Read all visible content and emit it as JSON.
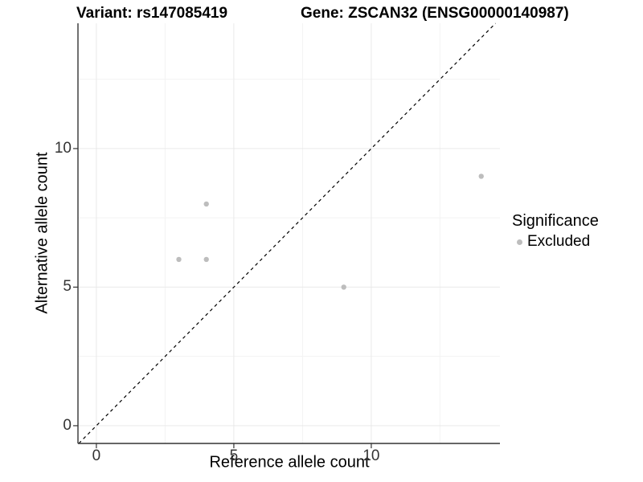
{
  "chart_data": {
    "type": "scatter",
    "titles": {
      "left": "Variant: rs147085419",
      "right": "Gene: ZSCAN32 (ENSG00000140987)"
    },
    "xlabel": "Reference allele count",
    "ylabel": "Alternative allele count",
    "xlim": [
      -0.67,
      14.68
    ],
    "ylim": [
      -0.64,
      14.52
    ],
    "x_ticks": [
      0,
      5,
      10
    ],
    "y_ticks": [
      0,
      5,
      10
    ],
    "x_minor_ticks": [
      2.5,
      7.5,
      12.5
    ],
    "y_minor_ticks": [
      2.5,
      7.5,
      12.5
    ],
    "grid": "major+minor",
    "identity_line": {
      "slope": 1,
      "intercept": 0,
      "style": "dashed",
      "color": "#000000"
    },
    "series": [
      {
        "name": "Excluded",
        "color": "#bdbdbd",
        "points": [
          {
            "x": 3,
            "y": 6
          },
          {
            "x": 4,
            "y": 6
          },
          {
            "x": 4,
            "y": 8
          },
          {
            "x": 9,
            "y": 5
          },
          {
            "x": 14,
            "y": 9
          }
        ]
      }
    ],
    "legend": {
      "title": "Significance",
      "position": "right",
      "entries": [
        {
          "label": "Excluded",
          "color": "#bdbdbd"
        }
      ]
    },
    "colors": {
      "point": "#bdbdbd",
      "grid_major": "#e9e9e9",
      "grid_minor": "#f3f3f3",
      "axis": "#333333",
      "tick_label": "#333333",
      "identity_line": "#000000"
    }
  }
}
